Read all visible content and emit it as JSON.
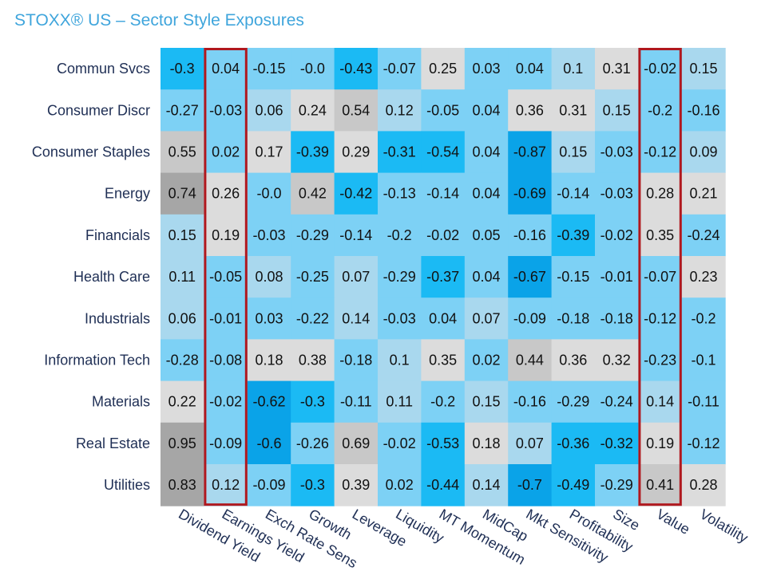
{
  "title": "STOXX® US – Sector Style Exposures",
  "chart_data": {
    "type": "heatmap",
    "title": "STOXX® US – Sector Style Exposures",
    "rows": [
      "Commun Svcs",
      "Consumer Discr",
      "Consumer Staples",
      "Energy",
      "Financials",
      "Health Care",
      "Industrials",
      "Information Tech",
      "Materials",
      "Real Estate",
      "Utilities"
    ],
    "columns": [
      "Dividend Yield",
      "Earnings Yield",
      "Exch Rate Sens",
      "Growth",
      "Leverage",
      "Liquidity",
      "MT Momentum",
      "MidCap",
      "Mkt Sensitivity",
      "Profitability",
      "Size",
      "Value",
      "Volatility"
    ],
    "cells": [
      [
        "-0.3",
        "0.04",
        "-0.15",
        "-0.0",
        "-0.43",
        "-0.07",
        "0.25",
        "0.03",
        "0.04",
        "0.1",
        "0.31",
        "-0.02",
        "0.15"
      ],
      [
        "-0.27",
        "-0.03",
        "0.06",
        "0.24",
        "0.54",
        "0.12",
        "-0.05",
        "0.04",
        "0.36",
        "0.31",
        "0.15",
        "-0.2",
        "-0.16"
      ],
      [
        "0.55",
        "0.02",
        "0.17",
        "-0.39",
        "0.29",
        "-0.31",
        "-0.54",
        "0.04",
        "-0.87",
        "0.15",
        "-0.03",
        "-0.12",
        "0.09"
      ],
      [
        "0.74",
        "0.26",
        "-0.0",
        "0.42",
        "-0.42",
        "-0.13",
        "-0.14",
        "0.04",
        "-0.69",
        "-0.14",
        "-0.03",
        "0.28",
        "0.21"
      ],
      [
        "0.15",
        "0.19",
        "-0.03",
        "-0.29",
        "-0.14",
        "-0.2",
        "-0.02",
        "0.05",
        "-0.16",
        "-0.39",
        "-0.02",
        "0.35",
        "-0.24"
      ],
      [
        "0.11",
        "-0.05",
        "0.08",
        "-0.25",
        "0.07",
        "-0.29",
        "-0.37",
        "0.04",
        "-0.67",
        "-0.15",
        "-0.01",
        "-0.07",
        "0.23"
      ],
      [
        "0.06",
        "-0.01",
        "0.03",
        "-0.22",
        "0.14",
        "-0.03",
        "0.04",
        "0.07",
        "-0.09",
        "-0.18",
        "-0.18",
        "-0.12",
        "-0.2"
      ],
      [
        "-0.28",
        "-0.08",
        "0.18",
        "0.38",
        "-0.18",
        "0.1",
        "0.35",
        "0.02",
        "0.44",
        "0.36",
        "0.32",
        "-0.23",
        "-0.1"
      ],
      [
        "0.22",
        "-0.02",
        "-0.62",
        "-0.3",
        "-0.11",
        "0.11",
        "-0.2",
        "0.15",
        "-0.16",
        "-0.29",
        "-0.24",
        "0.14",
        "-0.11"
      ],
      [
        "0.95",
        "-0.09",
        "-0.6",
        "-0.26",
        "0.69",
        "-0.02",
        "-0.53",
        "0.18",
        "0.07",
        "-0.36",
        "-0.32",
        "0.19",
        "-0.12"
      ],
      [
        "0.83",
        "0.12",
        "-0.09",
        "-0.3",
        "0.39",
        "0.02",
        "-0.44",
        "0.14",
        "-0.7",
        "-0.49",
        "-0.29",
        "0.41",
        "0.28"
      ]
    ],
    "highlighted_columns": [
      "Earnings Yield",
      "Value"
    ],
    "colors": {
      "strong_negative": "#0aa3e8",
      "negative": "#1bbaf4",
      "slight_negative": "#7dd1f5",
      "near_zero": "#a9d8ee",
      "slight_positive": "#cfdde4",
      "positive": "#dcdcdc",
      "strong_positive": "#c8c8c8",
      "very_strong_positive": "#a6a6a6",
      "highlight_border": "#b0181e",
      "label_text": "#1f2f55",
      "title_text": "#3fa5dc"
    }
  }
}
